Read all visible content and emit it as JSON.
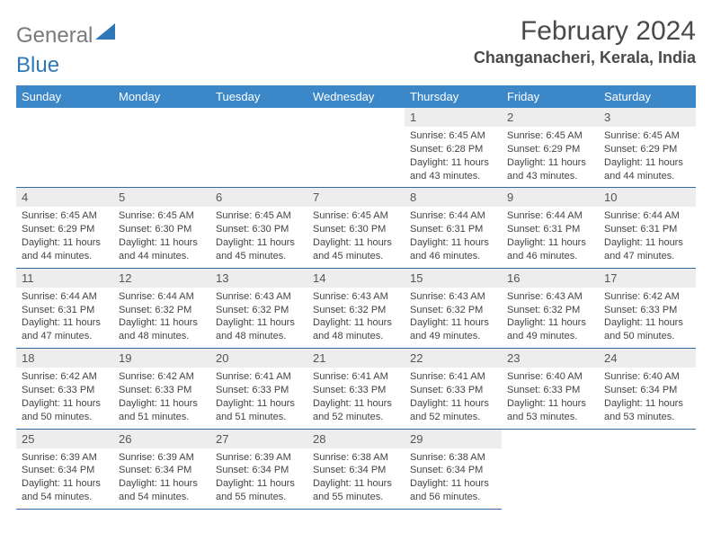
{
  "logo": {
    "general": "General",
    "blue": "Blue"
  },
  "title": "February 2024",
  "location": "Changanacheri, Kerala, India",
  "colors": {
    "header_bg": "#3b87c8",
    "header_text": "#ffffff",
    "daynum_bg": "#ededed",
    "rule": "#2f6aa0",
    "page_bg": "#ffffff",
    "text": "#444444"
  },
  "weekdays": [
    "Sunday",
    "Monday",
    "Tuesday",
    "Wednesday",
    "Thursday",
    "Friday",
    "Saturday"
  ],
  "layout": {
    "first_weekday_index": 4,
    "days_in_month": 29
  },
  "days": {
    "1": {
      "sunrise": "6:45 AM",
      "sunset": "6:28 PM",
      "daylight": "11 hours and 43 minutes."
    },
    "2": {
      "sunrise": "6:45 AM",
      "sunset": "6:29 PM",
      "daylight": "11 hours and 43 minutes."
    },
    "3": {
      "sunrise": "6:45 AM",
      "sunset": "6:29 PM",
      "daylight": "11 hours and 44 minutes."
    },
    "4": {
      "sunrise": "6:45 AM",
      "sunset": "6:29 PM",
      "daylight": "11 hours and 44 minutes."
    },
    "5": {
      "sunrise": "6:45 AM",
      "sunset": "6:30 PM",
      "daylight": "11 hours and 44 minutes."
    },
    "6": {
      "sunrise": "6:45 AM",
      "sunset": "6:30 PM",
      "daylight": "11 hours and 45 minutes."
    },
    "7": {
      "sunrise": "6:45 AM",
      "sunset": "6:30 PM",
      "daylight": "11 hours and 45 minutes."
    },
    "8": {
      "sunrise": "6:44 AM",
      "sunset": "6:31 PM",
      "daylight": "11 hours and 46 minutes."
    },
    "9": {
      "sunrise": "6:44 AM",
      "sunset": "6:31 PM",
      "daylight": "11 hours and 46 minutes."
    },
    "10": {
      "sunrise": "6:44 AM",
      "sunset": "6:31 PM",
      "daylight": "11 hours and 47 minutes."
    },
    "11": {
      "sunrise": "6:44 AM",
      "sunset": "6:31 PM",
      "daylight": "11 hours and 47 minutes."
    },
    "12": {
      "sunrise": "6:44 AM",
      "sunset": "6:32 PM",
      "daylight": "11 hours and 48 minutes."
    },
    "13": {
      "sunrise": "6:43 AM",
      "sunset": "6:32 PM",
      "daylight": "11 hours and 48 minutes."
    },
    "14": {
      "sunrise": "6:43 AM",
      "sunset": "6:32 PM",
      "daylight": "11 hours and 48 minutes."
    },
    "15": {
      "sunrise": "6:43 AM",
      "sunset": "6:32 PM",
      "daylight": "11 hours and 49 minutes."
    },
    "16": {
      "sunrise": "6:43 AM",
      "sunset": "6:32 PM",
      "daylight": "11 hours and 49 minutes."
    },
    "17": {
      "sunrise": "6:42 AM",
      "sunset": "6:33 PM",
      "daylight": "11 hours and 50 minutes."
    },
    "18": {
      "sunrise": "6:42 AM",
      "sunset": "6:33 PM",
      "daylight": "11 hours and 50 minutes."
    },
    "19": {
      "sunrise": "6:42 AM",
      "sunset": "6:33 PM",
      "daylight": "11 hours and 51 minutes."
    },
    "20": {
      "sunrise": "6:41 AM",
      "sunset": "6:33 PM",
      "daylight": "11 hours and 51 minutes."
    },
    "21": {
      "sunrise": "6:41 AM",
      "sunset": "6:33 PM",
      "daylight": "11 hours and 52 minutes."
    },
    "22": {
      "sunrise": "6:41 AM",
      "sunset": "6:33 PM",
      "daylight": "11 hours and 52 minutes."
    },
    "23": {
      "sunrise": "6:40 AM",
      "sunset": "6:33 PM",
      "daylight": "11 hours and 53 minutes."
    },
    "24": {
      "sunrise": "6:40 AM",
      "sunset": "6:34 PM",
      "daylight": "11 hours and 53 minutes."
    },
    "25": {
      "sunrise": "6:39 AM",
      "sunset": "6:34 PM",
      "daylight": "11 hours and 54 minutes."
    },
    "26": {
      "sunrise": "6:39 AM",
      "sunset": "6:34 PM",
      "daylight": "11 hours and 54 minutes."
    },
    "27": {
      "sunrise": "6:39 AM",
      "sunset": "6:34 PM",
      "daylight": "11 hours and 55 minutes."
    },
    "28": {
      "sunrise": "6:38 AM",
      "sunset": "6:34 PM",
      "daylight": "11 hours and 55 minutes."
    },
    "29": {
      "sunrise": "6:38 AM",
      "sunset": "6:34 PM",
      "daylight": "11 hours and 56 minutes."
    }
  },
  "labels": {
    "sunrise": "Sunrise: ",
    "sunset": "Sunset: ",
    "daylight": "Daylight: "
  }
}
